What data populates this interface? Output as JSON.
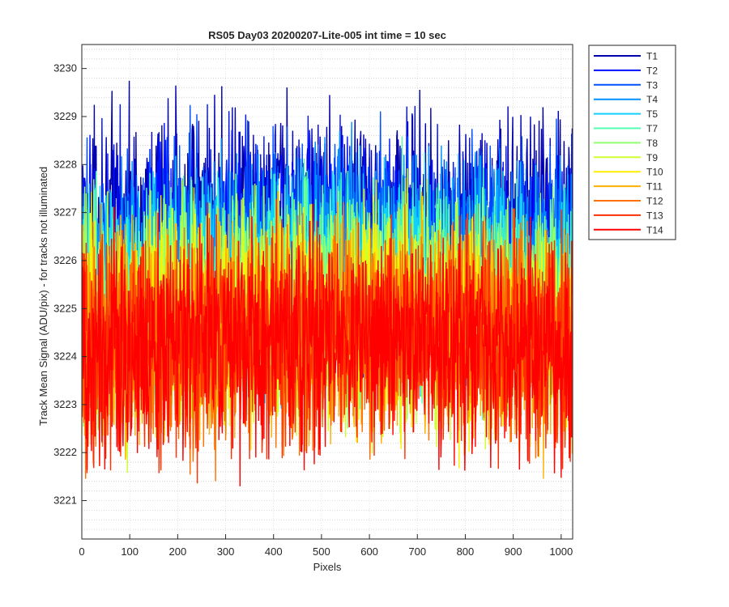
{
  "chart_data": {
    "type": "line",
    "title": "RS05 Day03 20200207-Lite-005 int time = 10 sec",
    "xlabel": "Pixels",
    "ylabel": "Track Mean Signal (ADU/pix) - for tracks not illuminated",
    "xlim": [
      0,
      1024
    ],
    "ylim": [
      3220.2,
      3230.5
    ],
    "xticks": [
      0,
      100,
      200,
      300,
      400,
      500,
      600,
      700,
      800,
      900,
      1000
    ],
    "yticks": [
      3221,
      3222,
      3223,
      3224,
      3225,
      3226,
      3227,
      3228,
      3229,
      3230
    ],
    "grid": true,
    "minor_grid": true,
    "legend_position": "outside-top-right",
    "series": [
      {
        "name": "T1",
        "color": "#0000ad",
        "mean": 3226.6,
        "noise": 1.1
      },
      {
        "name": "T2",
        "color": "#0010ff",
        "mean": 3226.2,
        "noise": 1.1
      },
      {
        "name": "T3",
        "color": "#0050ff",
        "mean": 3226.0,
        "noise": 1.1
      },
      {
        "name": "T4",
        "color": "#0090ff",
        "mean": 3225.7,
        "noise": 1.1
      },
      {
        "name": "T5",
        "color": "#10d0ff",
        "mean": 3225.4,
        "noise": 1.1
      },
      {
        "name": "T7",
        "color": "#50ffb0",
        "mean": 3225.1,
        "noise": 1.1
      },
      {
        "name": "T8",
        "color": "#90ff70",
        "mean": 3224.8,
        "noise": 1.1
      },
      {
        "name": "T9",
        "color": "#d0ff30",
        "mean": 3224.6,
        "noise": 1.1
      },
      {
        "name": "T10",
        "color": "#ffee00",
        "mean": 3224.4,
        "noise": 1.1
      },
      {
        "name": "T11",
        "color": "#ffb000",
        "mean": 3224.3,
        "noise": 1.1
      },
      {
        "name": "T12",
        "color": "#ff7000",
        "mean": 3224.2,
        "noise": 1.1
      },
      {
        "name": "T13",
        "color": "#ff3000",
        "mean": 3224.1,
        "noise": 1.1
      },
      {
        "name": "T14",
        "color": "#ff0000",
        "mean": 3224.0,
        "noise": 1.1
      }
    ]
  }
}
